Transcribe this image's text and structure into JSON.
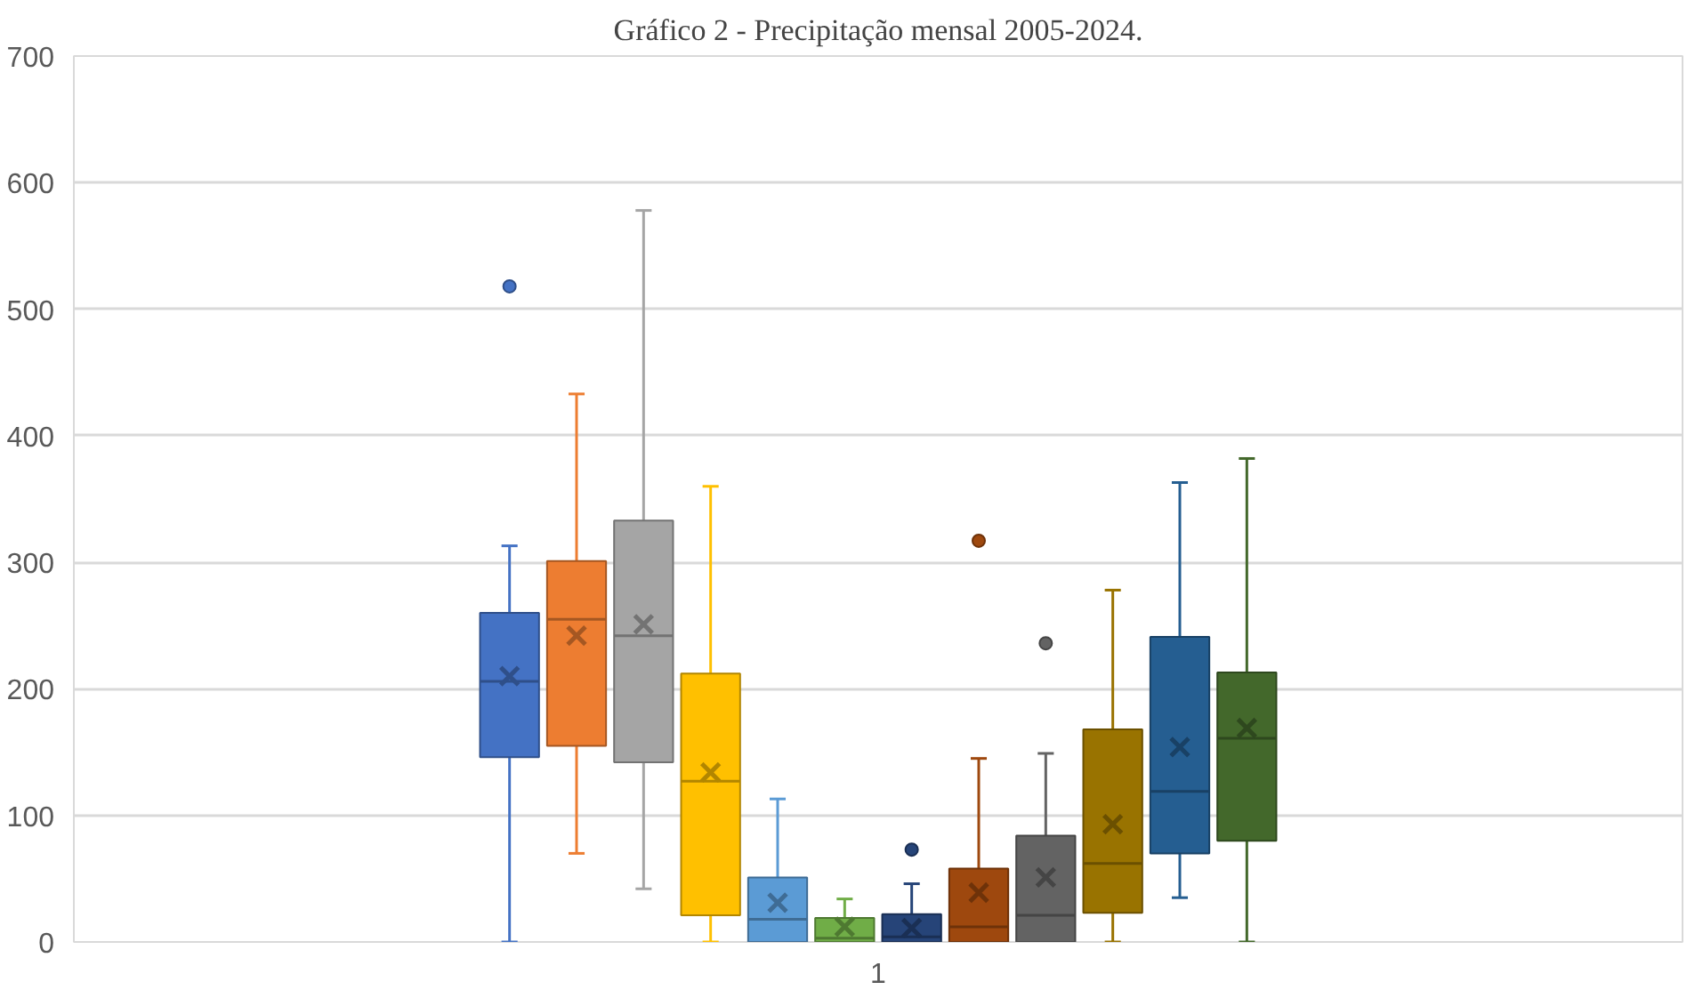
{
  "chart_data": {
    "type": "box",
    "title": "Gráfico 2 - Precipitação mensal 2005-2024.",
    "categories": [
      "1"
    ],
    "ylim": [
      0,
      700
    ],
    "yticks": [
      0,
      100,
      200,
      300,
      400,
      500,
      600,
      700
    ],
    "grid": "y",
    "marker": "cross",
    "series": [
      {
        "color": "#4472c4",
        "boxes": [
          {
            "low": 0,
            "q1": 146,
            "median": 206,
            "q3": 260,
            "high": 313,
            "mean": 210,
            "outliers": [
              518
            ]
          }
        ]
      },
      {
        "color": "#ed7d31",
        "boxes": [
          {
            "low": 70,
            "q1": 155,
            "median": 255,
            "q3": 301,
            "high": 433,
            "mean": 242
          }
        ]
      },
      {
        "color": "#a5a5a5",
        "boxes": [
          {
            "low": 42,
            "q1": 142,
            "median": 242,
            "q3": 333,
            "high": 578,
            "mean": 251
          }
        ]
      },
      {
        "color": "#ffc000",
        "boxes": [
          {
            "low": 0,
            "q1": 21,
            "median": 127,
            "q3": 212,
            "high": 360,
            "mean": 134
          }
        ]
      },
      {
        "color": "#5b9bd5",
        "boxes": [
          {
            "low": 0,
            "q1": 0,
            "median": 18,
            "q3": 51,
            "high": 113,
            "mean": 31
          }
        ]
      },
      {
        "color": "#70ad47",
        "boxes": [
          {
            "low": 0,
            "q1": 0,
            "median": 3,
            "q3": 19,
            "high": 34,
            "mean": 12
          }
        ]
      },
      {
        "color": "#264478",
        "boxes": [
          {
            "low": 0,
            "q1": 0,
            "median": 4,
            "q3": 22,
            "high": 46,
            "mean": 11,
            "outliers": [
              73
            ]
          }
        ]
      },
      {
        "color": "#9e480e",
        "boxes": [
          {
            "low": 0,
            "q1": 0,
            "median": 12,
            "q3": 58,
            "high": 145,
            "mean": 39,
            "outliers": [
              317
            ]
          }
        ]
      },
      {
        "color": "#636363",
        "boxes": [
          {
            "low": 0,
            "q1": 0,
            "median": 21,
            "q3": 84,
            "high": 149,
            "mean": 51,
            "outliers": [
              236
            ]
          }
        ]
      },
      {
        "color": "#997300",
        "boxes": [
          {
            "low": 0,
            "q1": 23,
            "median": 62,
            "q3": 168,
            "high": 278,
            "mean": 93
          }
        ]
      },
      {
        "color": "#255e91",
        "boxes": [
          {
            "low": 35,
            "q1": 70,
            "median": 119,
            "q3": 241,
            "high": 363,
            "mean": 154
          }
        ]
      },
      {
        "color": "#43682b",
        "boxes": [
          {
            "low": 0,
            "q1": 80,
            "median": 161,
            "q3": 213,
            "high": 382,
            "mean": 169
          }
        ]
      }
    ]
  }
}
